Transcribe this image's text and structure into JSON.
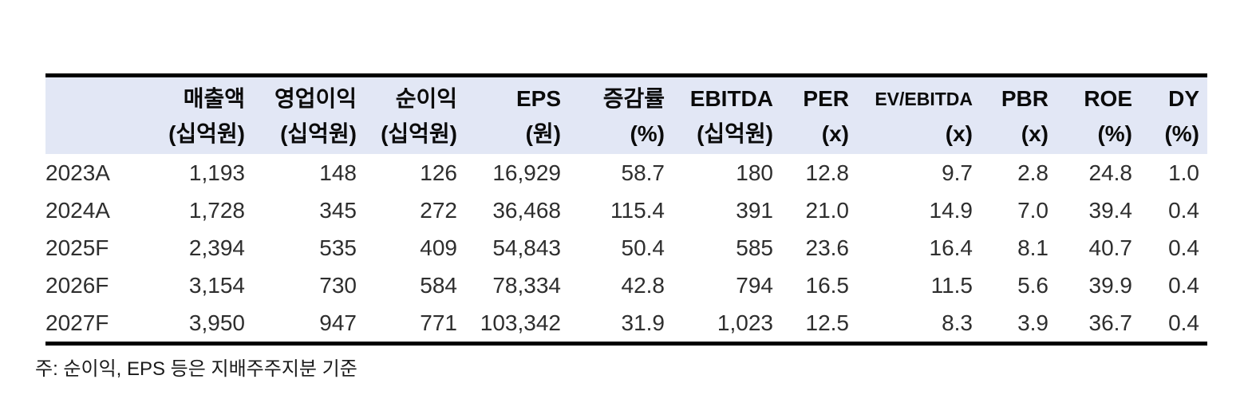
{
  "colors": {
    "header_bg": "#e2e7f5",
    "rule": "#000000",
    "text": "#2e2e2e"
  },
  "table": {
    "columns": [
      {
        "id": "year",
        "label": "",
        "unit": "",
        "align": "left",
        "small": false
      },
      {
        "id": "revenue",
        "label": "매출액",
        "unit": "(십억원)",
        "align": "right",
        "small": false
      },
      {
        "id": "op_profit",
        "label": "영업이익",
        "unit": "(십억원)",
        "align": "right",
        "small": false
      },
      {
        "id": "net_profit",
        "label": "순이익",
        "unit": "(십억원)",
        "align": "right",
        "small": false
      },
      {
        "id": "eps",
        "label": "EPS",
        "unit": "(원)",
        "align": "right",
        "small": false
      },
      {
        "id": "chg_rate",
        "label": "증감률",
        "unit": "(%)",
        "align": "right",
        "small": false
      },
      {
        "id": "ebitda",
        "label": "EBITDA",
        "unit": "(십억원)",
        "align": "right",
        "small": false
      },
      {
        "id": "per",
        "label": "PER",
        "unit": "(x)",
        "align": "right",
        "small": false
      },
      {
        "id": "ev_ebitda",
        "label": "EV/EBITDA",
        "unit": "(x)",
        "align": "right",
        "small": true
      },
      {
        "id": "pbr",
        "label": "PBR",
        "unit": "(x)",
        "align": "right",
        "small": false
      },
      {
        "id": "roe",
        "label": "ROE",
        "unit": "(%)",
        "align": "right",
        "small": false
      },
      {
        "id": "dy",
        "label": "DY",
        "unit": "(%)",
        "align": "right",
        "small": false
      }
    ],
    "rows": [
      [
        "2023A",
        "1,193",
        "148",
        "126",
        "16,929",
        "58.7",
        "180",
        "12.8",
        "9.7",
        "2.8",
        "24.8",
        "1.0"
      ],
      [
        "2024A",
        "1,728",
        "345",
        "272",
        "36,468",
        "115.4",
        "391",
        "21.0",
        "14.9",
        "7.0",
        "39.4",
        "0.4"
      ],
      [
        "2025F",
        "2,394",
        "535",
        "409",
        "54,843",
        "50.4",
        "585",
        "23.6",
        "16.4",
        "8.1",
        "40.7",
        "0.4"
      ],
      [
        "2026F",
        "3,154",
        "730",
        "584",
        "78,334",
        "42.8",
        "794",
        "16.5",
        "11.5",
        "5.6",
        "39.9",
        "0.4"
      ],
      [
        "2027F",
        "3,950",
        "947",
        "771",
        "103,342",
        "31.9",
        "1,023",
        "12.5",
        "8.3",
        "3.9",
        "36.7",
        "0.4"
      ]
    ],
    "footnote": "주: 순이익, EPS 등은 지배주주지분 기준"
  }
}
